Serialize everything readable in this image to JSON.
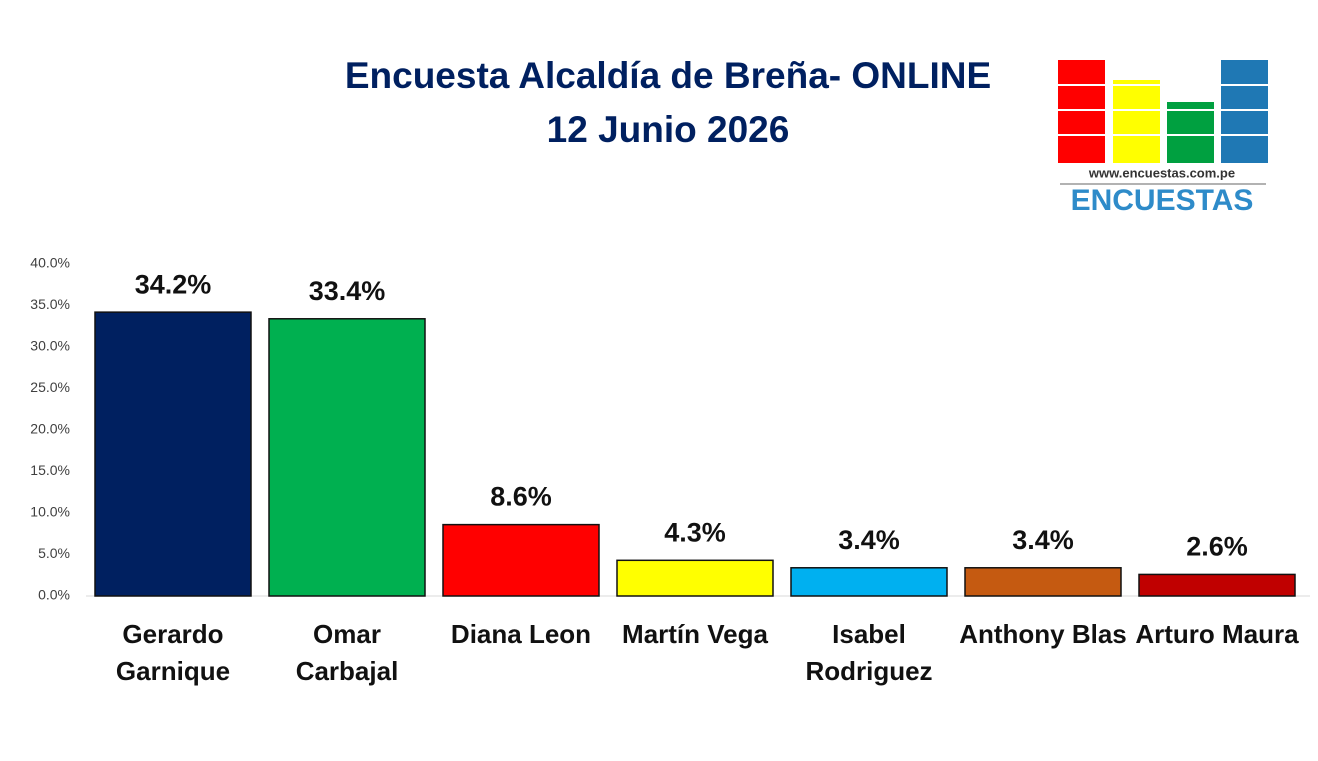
{
  "chart_data": {
    "type": "bar",
    "title": "Encuesta Alcaldía de Breña- ONLINE",
    "subtitle": "12 Junio 2026",
    "annotations": [
      "www.encuestas.com.pe",
      "ENCUESTAS"
    ],
    "categories": [
      "Gerardo Garnique",
      "Omar Carbajal",
      "Diana Leon",
      "Martín Vega",
      "Isabel Rodriguez",
      "Anthony Blas",
      "Arturo Maura"
    ],
    "values": [
      34.2,
      33.4,
      8.6,
      4.3,
      3.4,
      3.4,
      2.6
    ],
    "value_labels": [
      "34.2%",
      "33.4%",
      "8.6%",
      "4.3%",
      "3.4%",
      "3.4%",
      "2.6%"
    ],
    "colors": [
      "#002060",
      "#00b050",
      "#ff0000",
      "#ffff00",
      "#00b0f0",
      "#c55a11",
      "#c00000"
    ],
    "ylim": [
      0,
      40
    ],
    "yticks": [
      {
        "value": 0,
        "label": "0.0%"
      },
      {
        "value": 5,
        "label": "5.0%"
      },
      {
        "value": 10,
        "label": "10.0%"
      },
      {
        "value": 15,
        "label": "15.0%"
      },
      {
        "value": 20,
        "label": "20.0%"
      },
      {
        "value": 25,
        "label": "25.0%"
      },
      {
        "value": 30,
        "label": "30.0%"
      },
      {
        "value": 35,
        "label": "35.0%"
      },
      {
        "value": 40,
        "label": "40.0%"
      }
    ],
    "grid": false
  }
}
